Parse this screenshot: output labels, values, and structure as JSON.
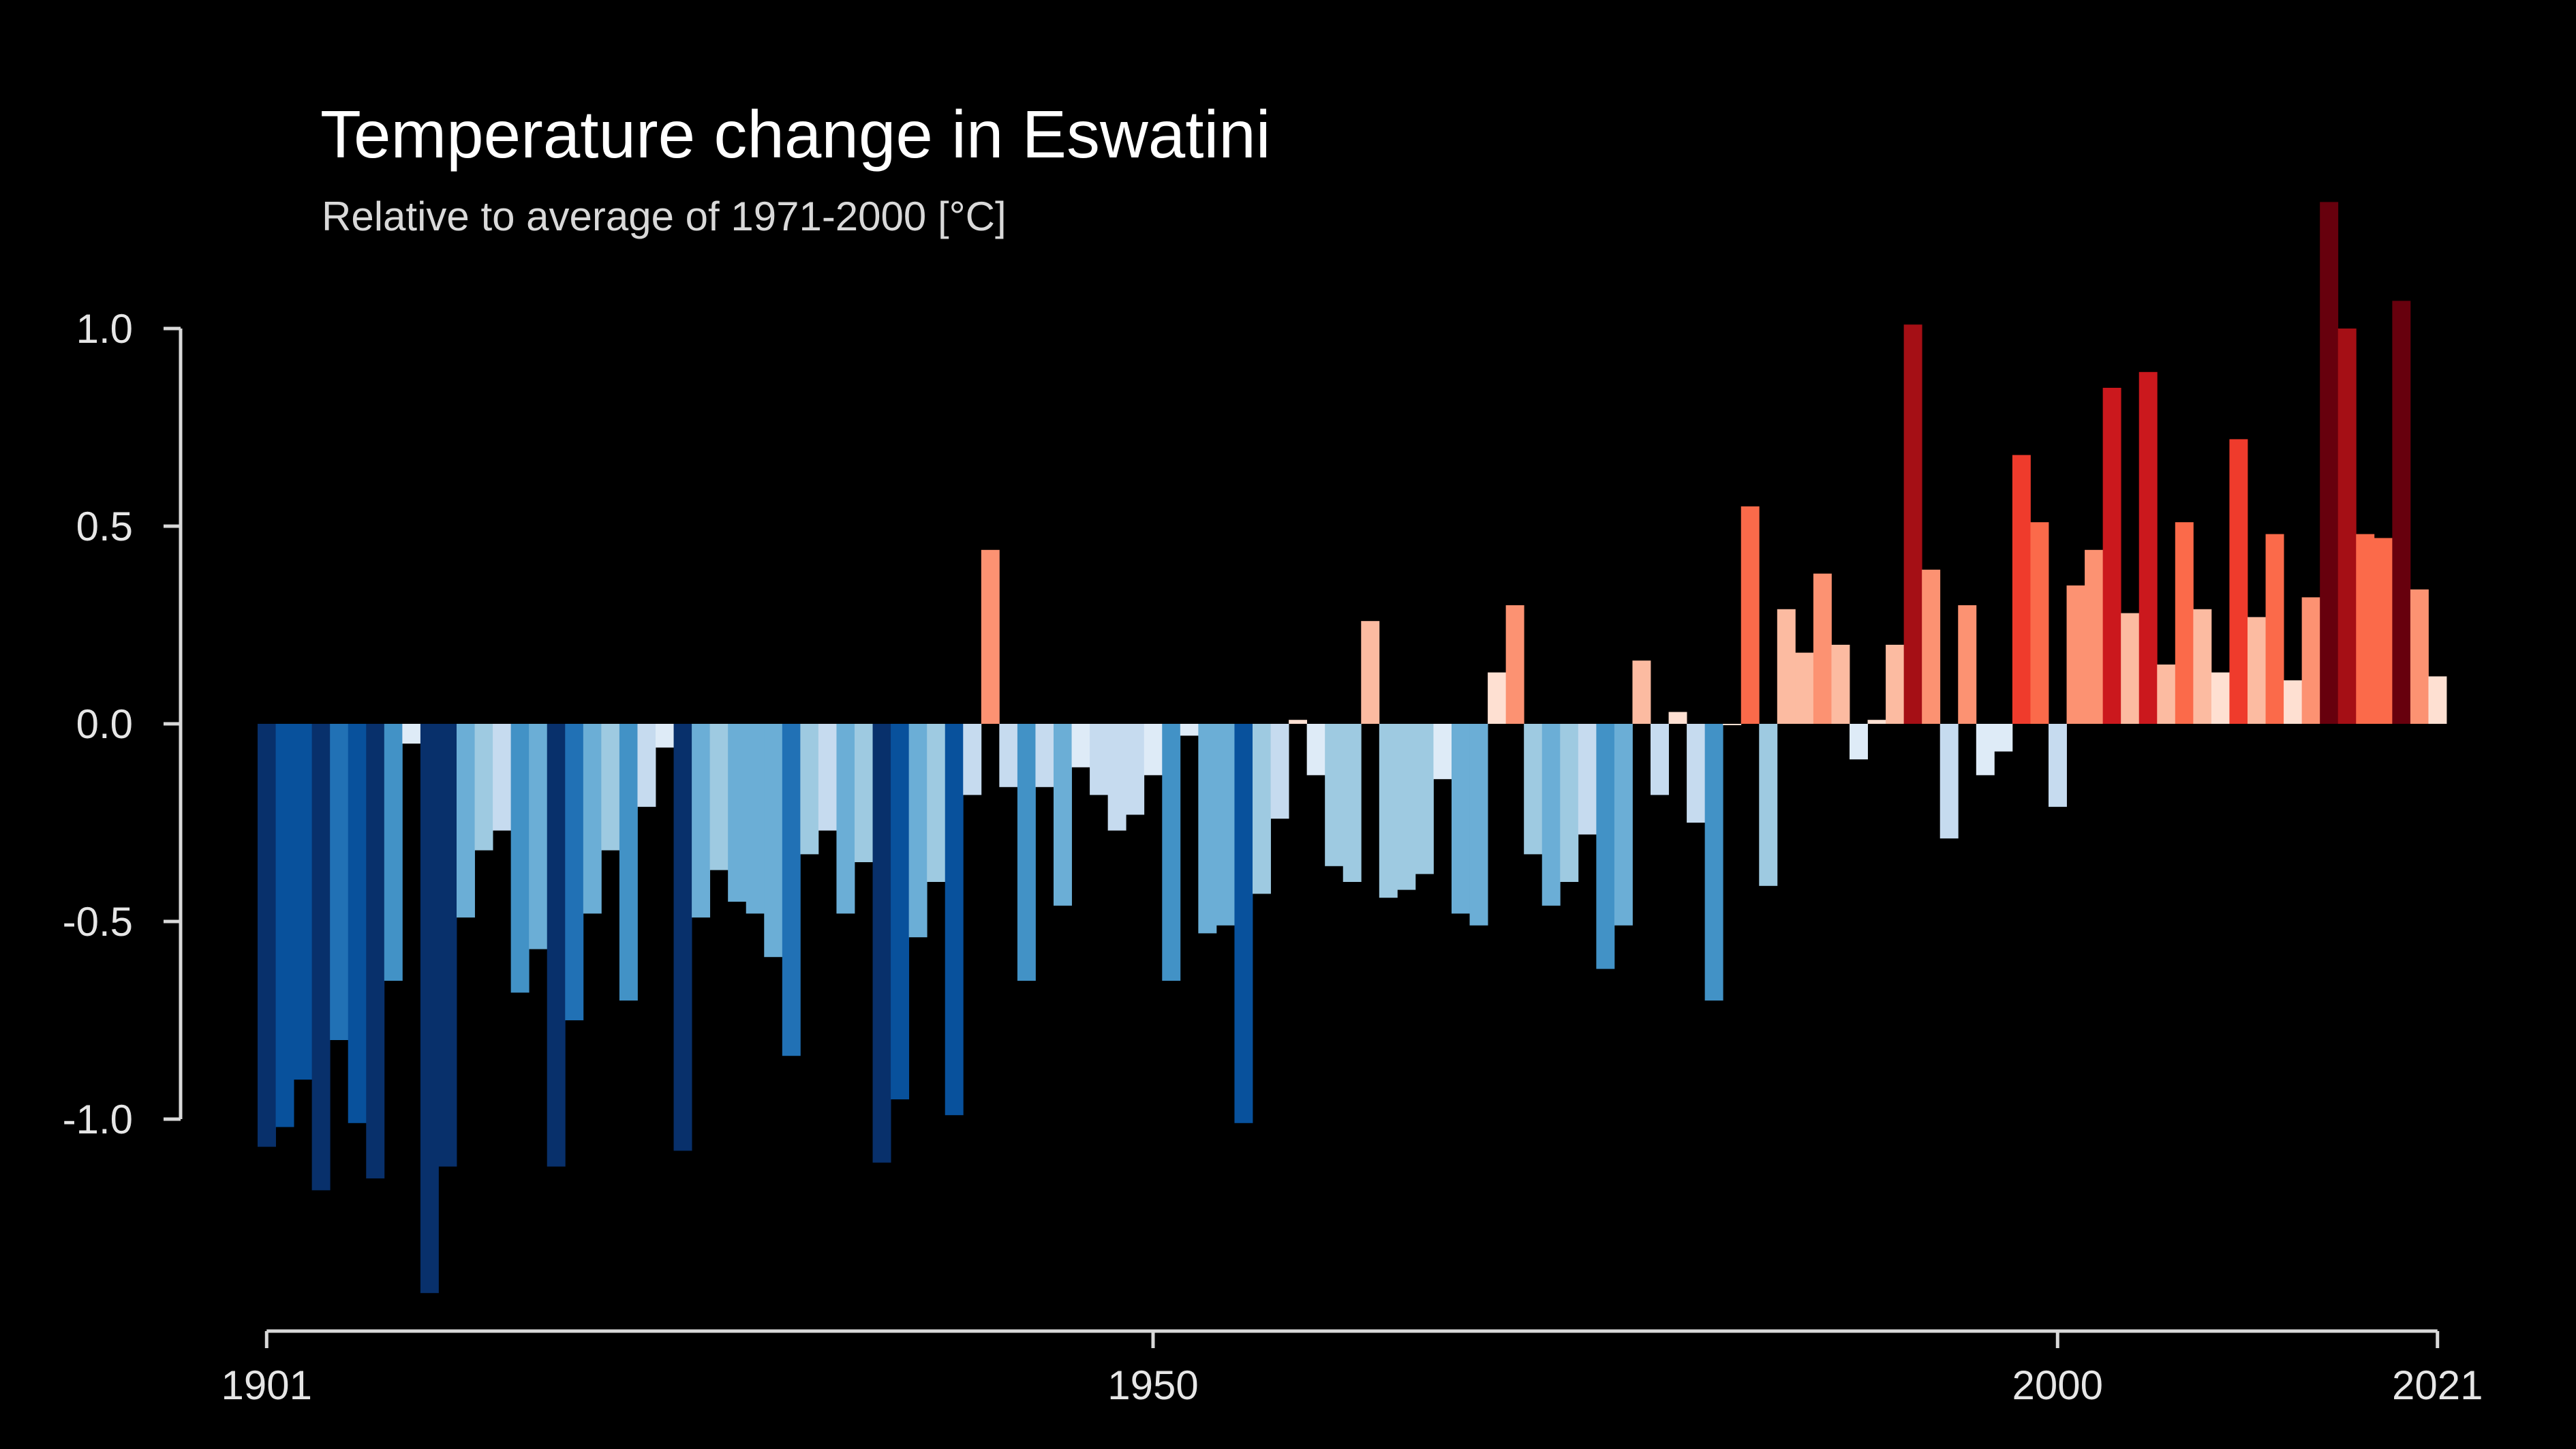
{
  "chart_data": {
    "type": "bar",
    "title": "Temperature change in Eswatini",
    "subtitle": "Relative to average of 1971-2000  [°C]",
    "xlabel": "",
    "ylabel": "",
    "x_start": 1901,
    "x_end": 2021,
    "xticks": [
      "1901",
      "1950",
      "2000",
      "2021"
    ],
    "yticks": [
      "1.0",
      "0.5",
      "0.0",
      "-0.5",
      "-1.0"
    ],
    "ylim": [
      -1.45,
      1.35
    ],
    "grid": false,
    "legend": "none",
    "color_scale": {
      "cool": [
        "#08306b",
        "#08519c",
        "#2171b5",
        "#4292c6",
        "#6baed6",
        "#9ecae1",
        "#c6dbef",
        "#deebf7"
      ],
      "warm": [
        "#fee0d2",
        "#fcbba1",
        "#fc9272",
        "#fb6a4a",
        "#ef3b2c",
        "#cb181d",
        "#a50f15",
        "#67000d"
      ]
    },
    "categories": [
      1901,
      1902,
      1903,
      1904,
      1905,
      1906,
      1907,
      1908,
      1909,
      1910,
      1911,
      1912,
      1913,
      1914,
      1915,
      1916,
      1917,
      1918,
      1919,
      1920,
      1921,
      1922,
      1923,
      1924,
      1925,
      1926,
      1927,
      1928,
      1929,
      1930,
      1931,
      1932,
      1933,
      1934,
      1935,
      1936,
      1937,
      1938,
      1939,
      1940,
      1941,
      1942,
      1943,
      1944,
      1945,
      1946,
      1947,
      1948,
      1949,
      1950,
      1951,
      1952,
      1953,
      1954,
      1955,
      1956,
      1957,
      1958,
      1959,
      1960,
      1961,
      1962,
      1963,
      1964,
      1965,
      1966,
      1967,
      1968,
      1969,
      1970,
      1971,
      1972,
      1973,
      1974,
      1975,
      1976,
      1977,
      1978,
      1979,
      1980,
      1981,
      1982,
      1983,
      1984,
      1985,
      1986,
      1987,
      1988,
      1989,
      1990,
      1991,
      1992,
      1993,
      1994,
      1995,
      1996,
      1997,
      1998,
      1999,
      2000,
      2001,
      2002,
      2003,
      2004,
      2005,
      2006,
      2007,
      2008,
      2009,
      2010,
      2011,
      2012,
      2013,
      2014,
      2015,
      2016,
      2017,
      2018,
      2019,
      2020,
      2021
    ],
    "values": [
      -1.07,
      -1.02,
      -0.9,
      -1.18,
      -0.8,
      -1.01,
      -1.15,
      -0.65,
      -0.05,
      -1.44,
      -1.12,
      -0.49,
      -0.32,
      -0.27,
      -0.68,
      -0.57,
      -1.12,
      -0.75,
      -0.48,
      -0.32,
      -0.7,
      -0.21,
      -0.06,
      -1.08,
      -0.49,
      -0.37,
      -0.45,
      -0.48,
      -0.59,
      -0.84,
      -0.33,
      -0.27,
      -0.48,
      -0.35,
      -1.11,
      -0.95,
      -0.54,
      -0.4,
      -0.99,
      -0.18,
      0.44,
      -0.16,
      -0.65,
      -0.16,
      -0.46,
      -0.11,
      -0.18,
      -0.27,
      -0.23,
      -0.13,
      -0.65,
      -0.03,
      -0.53,
      -0.51,
      -1.01,
      -0.43,
      -0.24,
      0.01,
      -0.13,
      -0.36,
      -0.4,
      0.26,
      -0.44,
      -0.42,
      -0.38,
      -0.14,
      -0.48,
      -0.51,
      0.13,
      0.3,
      -0.33,
      -0.46,
      -0.4,
      -0.28,
      -0.62,
      -0.51,
      0.16,
      -0.18,
      0.03,
      -0.25,
      -0.7,
      0.0,
      0.55,
      -0.41,
      0.29,
      0.18,
      0.38,
      0.2,
      -0.09,
      0.01,
      0.2,
      1.01,
      0.39,
      -0.29,
      0.3,
      -0.13,
      -0.07,
      0.68,
      0.51,
      -0.21,
      0.35,
      0.44,
      0.85,
      0.28,
      0.89,
      0.15,
      0.51,
      0.29,
      0.13,
      0.72,
      0.27,
      0.48,
      0.11,
      0.32,
      1.32,
      1.0,
      0.48,
      0.47,
      1.07,
      0.34,
      0.12
    ]
  }
}
